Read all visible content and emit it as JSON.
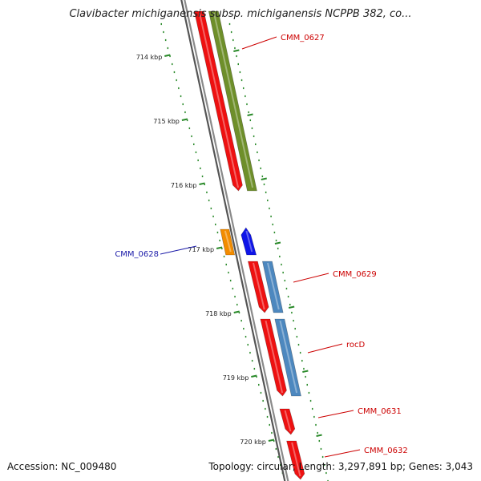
{
  "title": "Clavibacter michiganensis subsp. michiganensis NCPPB 382, co...",
  "footer": {
    "accession": "Accession: NC_009480",
    "summary": "Topology: circular; Length: 3,297,891 bp; Genes: 3,043"
  },
  "colors": {
    "backbone": "#8a8a8a",
    "tick": "#2a8a2a",
    "cds_red": "#ee1111",
    "olive": "#6e8f2a",
    "steelblue": "#4d88bf",
    "orange": "#f28c00",
    "blue": "#0f15e8",
    "label_red": "#cc0000",
    "label_blue": "#1a1aa8"
  },
  "ticks": [
    {
      "label": "714 kbp",
      "kbp": 714
    },
    {
      "label": "715 kbp",
      "kbp": 715
    },
    {
      "label": "716 kbp",
      "kbp": 716
    },
    {
      "label": "717 kbp",
      "kbp": 717
    },
    {
      "label": "718 kbp",
      "kbp": 718
    },
    {
      "label": "719 kbp",
      "kbp": 719
    },
    {
      "label": "720 kbp",
      "kbp": 720
    }
  ],
  "features": [
    {
      "name": "CMM_0627",
      "start": 713.3,
      "end": 716.1,
      "track": "inner",
      "color": "olive"
    },
    {
      "name": "CMM_0627 (red)",
      "start": 713.3,
      "end": 716.1,
      "track": "outer",
      "color": "cds_red"
    },
    {
      "name": "CMM_0628 (orange)",
      "start": 716.7,
      "end": 717.1,
      "track": "outer_far",
      "color": "orange"
    },
    {
      "name": "CMM_0628 (blue)",
      "start": 716.7,
      "end": 717.1,
      "track": "outer",
      "color": "blue"
    },
    {
      "name": "CMM_0629 (red)",
      "start": 717.2,
      "end": 718.0,
      "track": "outer",
      "color": "cds_red"
    },
    {
      "name": "CMM_0629",
      "start": 717.2,
      "end": 718.0,
      "track": "inner",
      "color": "steelblue"
    },
    {
      "name": "rocD (red)",
      "start": 718.1,
      "end": 719.3,
      "track": "outer",
      "color": "cds_red"
    },
    {
      "name": "rocD",
      "start": 718.1,
      "end": 719.3,
      "track": "inner",
      "color": "steelblue"
    },
    {
      "name": "CMM_0631",
      "start": 719.5,
      "end": 719.9,
      "track": "outer",
      "color": "cds_red"
    },
    {
      "name": "CMM_0632",
      "start": 720.0,
      "end": 720.6,
      "track": "outer",
      "color": "cds_red"
    }
  ],
  "labels": [
    {
      "text": "CMM_0627",
      "color": "label_red"
    },
    {
      "text": "CMM_0628",
      "color": "label_blue"
    },
    {
      "text": "CMM_0629",
      "color": "label_red"
    },
    {
      "text": "rocD",
      "color": "label_red"
    },
    {
      "text": "CMM_0631",
      "color": "label_red"
    },
    {
      "text": "CMM_0632",
      "color": "label_red"
    }
  ]
}
